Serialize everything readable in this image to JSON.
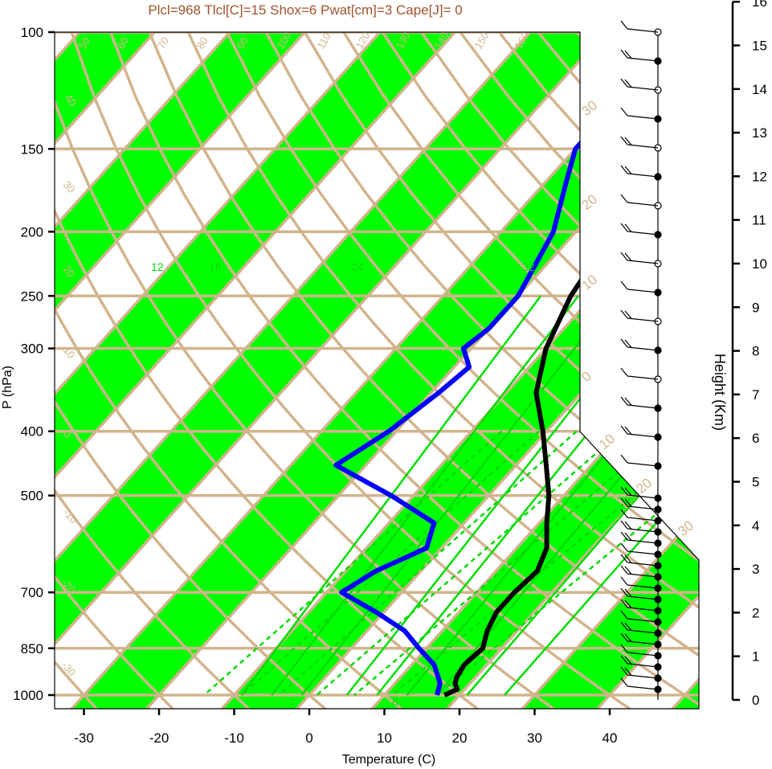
{
  "header": {
    "text": "Plcl=968 Tlcl[C]=15 Shox=6 Pwat[cm]=3 Cape[J]= 0"
  },
  "colors": {
    "header": "#a0522d",
    "isoline": "#d2b48c",
    "band": "#00ff00",
    "mixing_ratio": "#00dd00",
    "temperature": "#000000",
    "dewpoint": "#0000ff"
  },
  "chart_data": {
    "type": "line",
    "chart_subtype": "skew-T log-P sounding diagram",
    "xlabel": "Temperature (C)",
    "ylabel": "P (hPa)",
    "y2label": "Height (Km)",
    "x_ticks": [
      -30,
      -20,
      -10,
      0,
      10,
      20,
      30,
      40
    ],
    "y_ticks": [
      100,
      150,
      200,
      250,
      300,
      400,
      500,
      700,
      850,
      1000
    ],
    "y2_ticks": [
      0,
      1,
      2,
      3,
      4,
      5,
      6,
      7,
      8,
      9,
      10,
      11,
      12,
      13,
      14,
      15,
      16
    ],
    "isotherm_labels": [
      "50",
      "60",
      "70",
      "80",
      "90",
      "100",
      "110",
      "120",
      "130",
      "140",
      "150",
      "160"
    ],
    "theta_labels": [
      "40",
      "30",
      "20",
      "10",
      "0",
      "-10",
      "-20",
      "-30"
    ],
    "thetae_labels": [
      "30",
      "20",
      "10",
      "0",
      "10",
      "20",
      "30"
    ],
    "mixing_ratio_labels": [
      "12",
      "16",
      "24",
      "32",
      "3",
      "8"
    ],
    "series": [
      {
        "name": "Temperature",
        "points": [
          [
            18,
            1000
          ],
          [
            19,
            980
          ],
          [
            18,
            960
          ],
          [
            17.5,
            940
          ],
          [
            17,
            900
          ],
          [
            17.5,
            850
          ],
          [
            16,
            800
          ],
          [
            15,
            750
          ],
          [
            15,
            700
          ],
          [
            15.5,
            650
          ],
          [
            14,
            600
          ],
          [
            11,
            550
          ],
          [
            8,
            500
          ],
          [
            4,
            450
          ],
          [
            -0.5,
            400
          ],
          [
            -6,
            350
          ],
          [
            -10,
            300
          ],
          [
            -13,
            250
          ],
          [
            -15,
            200
          ],
          [
            -14.5,
            170
          ],
          [
            -15.5,
            150
          ],
          [
            -18,
            125
          ],
          [
            -20,
            110
          ],
          [
            -20.5,
            100
          ]
        ]
      },
      {
        "name": "Dewpoint",
        "points": [
          [
            17,
            1000
          ],
          [
            16,
            960
          ],
          [
            13,
            900
          ],
          [
            9,
            850
          ],
          [
            5,
            800
          ],
          [
            -1,
            750
          ],
          [
            -8,
            700
          ],
          [
            -6,
            650
          ],
          [
            -2,
            600
          ],
          [
            -4,
            550
          ],
          [
            -13,
            500
          ],
          [
            -24,
            450
          ],
          [
            -21,
            400
          ],
          [
            -19,
            350
          ],
          [
            -18,
            320
          ],
          [
            -21,
            300
          ],
          [
            -20,
            280
          ],
          [
            -20,
            250
          ],
          [
            -23,
            200
          ],
          [
            -27,
            170
          ],
          [
            -30,
            150
          ],
          [
            -30,
            130
          ],
          [
            -28,
            115
          ],
          [
            -30,
            100
          ]
        ]
      }
    ],
    "wind_barb_count": 34
  }
}
